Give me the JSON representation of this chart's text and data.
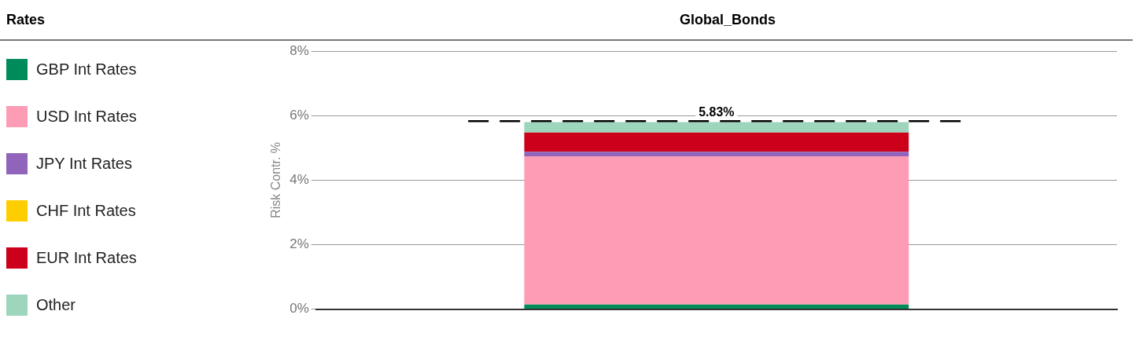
{
  "chart_data": {
    "type": "bar",
    "title": "Global_Bonds",
    "legend_title": "Rates",
    "ylabel": "Risk Contr. %",
    "categories": [
      null
    ],
    "stacked": true,
    "series": [
      {
        "name": "GBP Int Rates",
        "color": "#008c5a",
        "values": [
          0.14
        ]
      },
      {
        "name": "USD Int Rates",
        "color": "#fd9cb4",
        "values": [
          4.6
        ]
      },
      {
        "name": "JPY Int Rates",
        "color": "#9064bb",
        "values": [
          0.14
        ]
      },
      {
        "name": "CHF Int Rates",
        "color": "#ffce00",
        "values": [
          0
        ]
      },
      {
        "name": "EUR Int Rates",
        "color": "#cc001b",
        "values": [
          0.6
        ]
      },
      {
        "name": "Other",
        "color": "#9dd6bc",
        "values": [
          0.32
        ]
      }
    ],
    "ylim": [
      0,
      8
    ],
    "yticks": [
      {
        "value": 0,
        "label": "0%"
      },
      {
        "value": 2,
        "label": "2%"
      },
      {
        "value": 4,
        "label": "4%"
      },
      {
        "value": 6,
        "label": "6%"
      },
      {
        "value": 8,
        "label": "8%"
      }
    ],
    "ref_lines": [
      {
        "axis": "y",
        "value": 5.83,
        "label": "5.83%",
        "color": "#000000",
        "line_style": "dashed"
      }
    ],
    "grid": "y",
    "legend": "left"
  }
}
